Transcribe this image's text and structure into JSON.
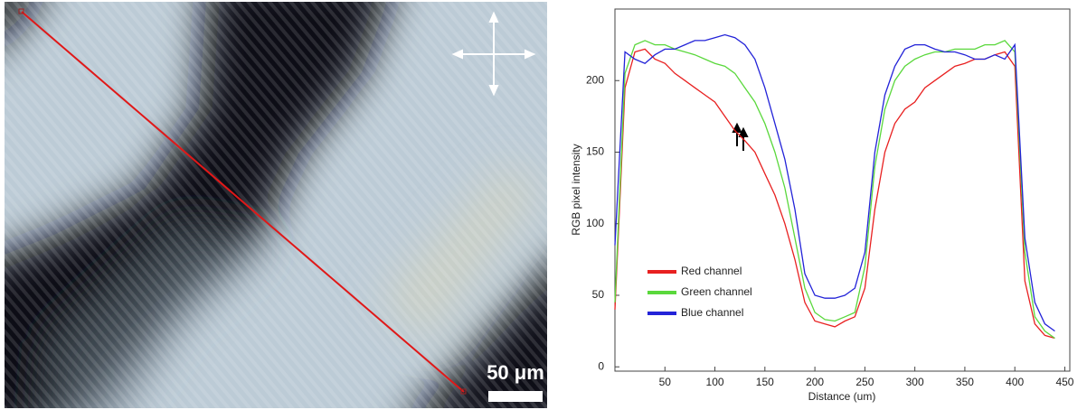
{
  "image": {
    "scale_bar_label": "50 μm"
  },
  "chart_data": {
    "type": "line",
    "xlabel": "Distance (um)",
    "ylabel": "RGB pixel intensity",
    "x": [
      0,
      10,
      20,
      30,
      40,
      50,
      60,
      70,
      80,
      90,
      100,
      110,
      120,
      130,
      140,
      150,
      160,
      170,
      180,
      190,
      200,
      210,
      220,
      230,
      240,
      250,
      260,
      270,
      280,
      290,
      300,
      310,
      320,
      330,
      340,
      350,
      360,
      370,
      380,
      390,
      400,
      410,
      420,
      430,
      440
    ],
    "series": [
      {
        "name": "Red channel",
        "color": "#e82020",
        "values": [
          40,
          195,
          220,
          222,
          215,
          212,
          205,
          200,
          195,
          190,
          185,
          175,
          165,
          158,
          150,
          135,
          120,
          100,
          75,
          45,
          32,
          30,
          28,
          32,
          35,
          55,
          110,
          150,
          170,
          180,
          185,
          195,
          200,
          205,
          210,
          212,
          215,
          215,
          218,
          220,
          210,
          60,
          30,
          22,
          20
        ]
      },
      {
        "name": "Green channel",
        "color": "#5ad83c",
        "values": [
          45,
          205,
          225,
          228,
          225,
          225,
          222,
          220,
          218,
          215,
          212,
          210,
          205,
          195,
          185,
          170,
          150,
          125,
          90,
          55,
          38,
          33,
          32,
          35,
          38,
          70,
          140,
          180,
          200,
          210,
          215,
          218,
          220,
          220,
          222,
          222,
          222,
          225,
          225,
          228,
          220,
          80,
          35,
          25,
          20
        ]
      },
      {
        "name": "Blue channel",
        "color": "#2323d8",
        "values": [
          85,
          220,
          215,
          212,
          218,
          222,
          222,
          225,
          228,
          228,
          230,
          232,
          230,
          225,
          215,
          195,
          170,
          145,
          110,
          65,
          50,
          48,
          48,
          50,
          55,
          80,
          150,
          190,
          210,
          222,
          225,
          225,
          222,
          220,
          220,
          218,
          215,
          215,
          218,
          215,
          225,
          90,
          45,
          30,
          25
        ]
      }
    ],
    "xlim": [
      0,
      455
    ],
    "ylim": [
      -3,
      250
    ],
    "xticks": [
      50,
      100,
      150,
      200,
      250,
      300,
      350,
      400,
      450
    ],
    "yticks": [
      0,
      50,
      100,
      150,
      200
    ],
    "grid": false,
    "legend": "lower left"
  }
}
